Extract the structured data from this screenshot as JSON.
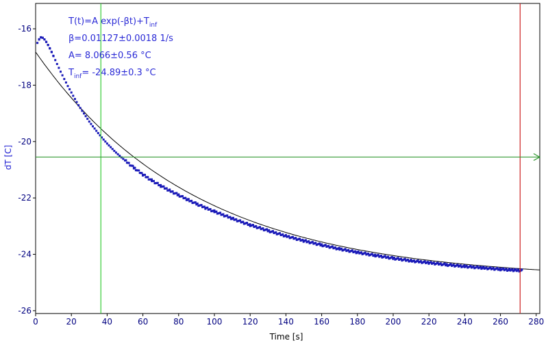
{
  "chart_data": {
    "type": "scatter",
    "xlabel": "Time [s]",
    "ylabel": "dT [C]",
    "xlim": [
      0,
      282
    ],
    "ylim": [
      -26.1,
      -15.1
    ],
    "x_ticks": [
      "0",
      "20",
      "40",
      "60",
      "80",
      "100",
      "120",
      "140",
      "160",
      "180",
      "200",
      "220",
      "240",
      "260",
      "280"
    ],
    "y_ticks": [
      "-16",
      "-18",
      "-20",
      "-22",
      "-24",
      "-26"
    ],
    "grid": false,
    "annotations": [
      {
        "text": "T(t)=A exp(-βt)+T",
        "sub": "inf",
        "after": ""
      },
      {
        "text": "β=0.01127±0.0018 1/s"
      },
      {
        "text": "A= 8.066±0.56 °C"
      },
      {
        "text": "T",
        "sub": "inf",
        "after": "= -24.89±0.3 °C"
      }
    ],
    "fit": {
      "A": 8.066,
      "beta": 0.01127,
      "T_inf": -24.89,
      "x_range": [
        0,
        282
      ]
    },
    "series": [
      {
        "type": "scatter",
        "color": "#1a1ab8",
        "x": [
          1,
          2,
          3,
          4,
          5,
          6,
          7,
          8,
          9,
          10,
          12,
          14,
          16,
          18,
          20,
          22,
          24,
          26,
          28,
          30,
          32,
          34,
          36,
          38,
          40,
          42,
          44,
          46,
          48,
          50,
          55,
          60,
          65,
          70,
          75,
          80,
          85,
          90,
          95,
          100,
          110,
          120,
          130,
          140,
          150,
          160,
          170,
          180,
          190,
          200,
          210,
          220,
          230,
          240,
          250,
          260,
          265,
          268,
          270,
          272
        ],
        "y": [
          -16.5,
          -16.37,
          -16.3,
          -16.32,
          -16.38,
          -16.47,
          -16.58,
          -16.7,
          -16.83,
          -16.97,
          -17.25,
          -17.52,
          -17.78,
          -18.03,
          -18.26,
          -18.49,
          -18.71,
          -18.91,
          -19.1,
          -19.29,
          -19.46,
          -19.62,
          -19.78,
          -19.93,
          -20.07,
          -20.2,
          -20.33,
          -20.45,
          -20.56,
          -20.67,
          -20.93,
          -21.17,
          -21.38,
          -21.57,
          -21.74,
          -21.9,
          -22.06,
          -22.21,
          -22.35,
          -22.48,
          -22.73,
          -22.96,
          -23.16,
          -23.35,
          -23.52,
          -23.67,
          -23.81,
          -23.93,
          -24.04,
          -24.14,
          -24.23,
          -24.3,
          -24.37,
          -24.43,
          -24.48,
          -24.53,
          -24.55,
          -24.56,
          -24.57,
          -24.58
        ]
      }
    ],
    "markers": [
      {
        "orientation": "vertical",
        "x": 36.5,
        "color": "#33cc33"
      },
      {
        "orientation": "vertical",
        "x": 271,
        "color": "#cc2222"
      },
      {
        "orientation": "horizontal",
        "y": -20.55,
        "color": "#339933",
        "arrow": true
      }
    ]
  }
}
